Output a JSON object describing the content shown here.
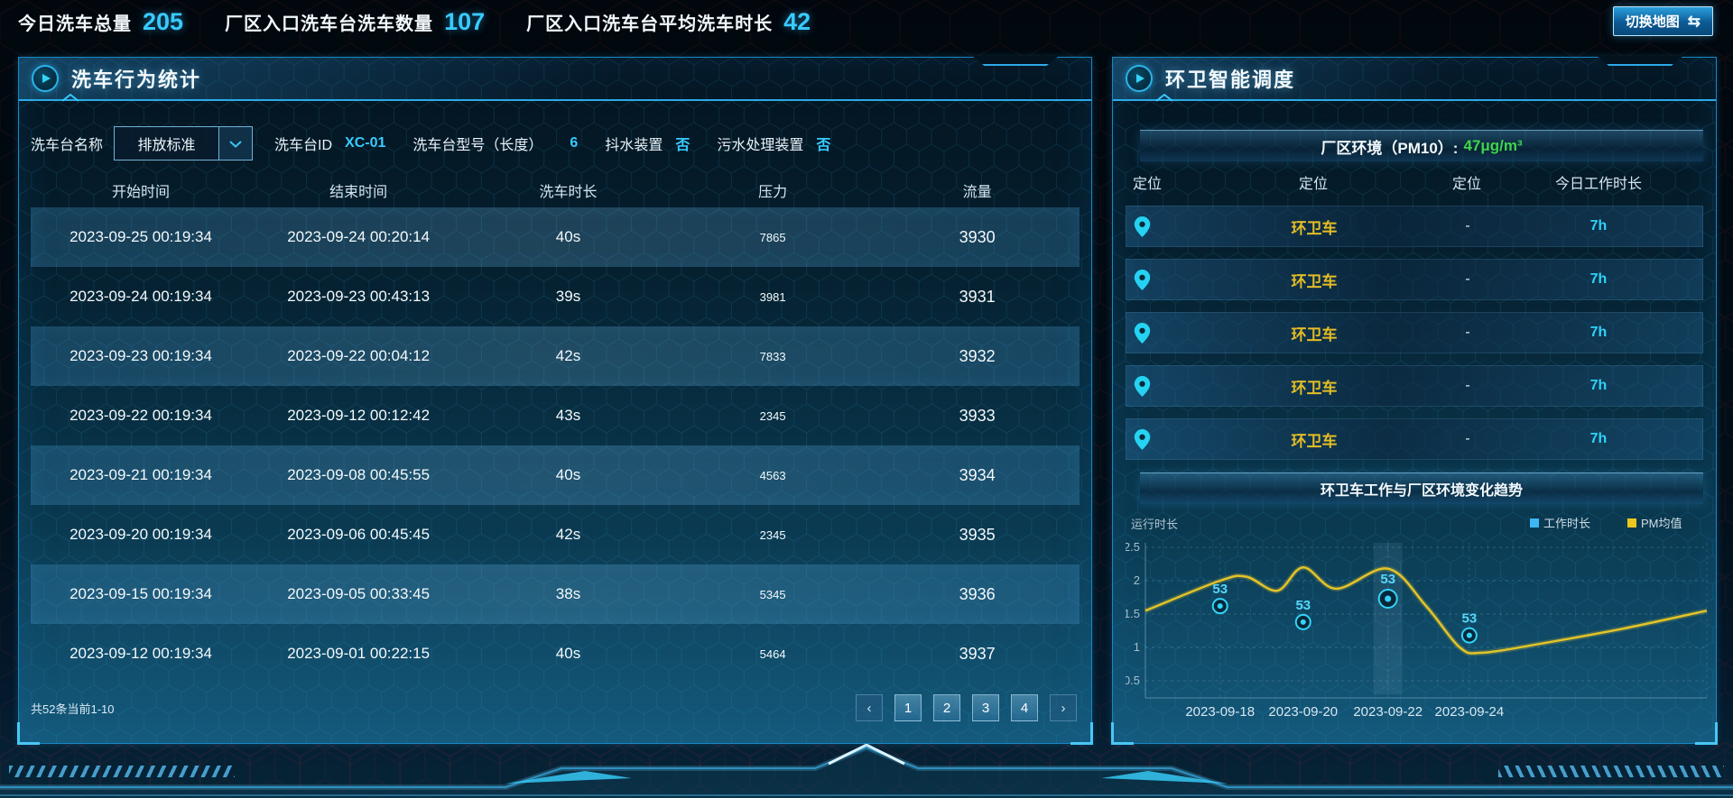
{
  "top_bar": {
    "stats": [
      {
        "label": "今日洗车总量",
        "value": "205"
      },
      {
        "label": "厂区入口洗车台洗车数量",
        "value": "107"
      },
      {
        "label": "厂区入口洗车台平均洗车时长",
        "value": "42"
      }
    ],
    "map_button": {
      "label": "切换地图",
      "icon": "⇆"
    }
  },
  "left_panel": {
    "title": "洗车行为统计",
    "filters": {
      "name_label": "洗车台名称",
      "name_value": "排放标准",
      "id_label": "洗车台ID",
      "id_value": "XC-01",
      "model_label": "洗车台型号（长度）",
      "model_value": "6",
      "shake_label": "抖水装置",
      "shake_value": "否",
      "sewage_label": "污水处理装置",
      "sewage_value": "否"
    },
    "table": {
      "headers": [
        "开始时间",
        "结束时间",
        "洗车时长",
        "压力",
        "流量"
      ],
      "rows": [
        [
          "2023-09-25 00:19:34",
          "2023-09-24 00:20:14",
          "40s",
          "7865",
          "3930"
        ],
        [
          "2023-09-24 00:19:34",
          "2023-09-23 00:43:13",
          "39s",
          "3981",
          "3931"
        ],
        [
          "2023-09-23 00:19:34",
          "2023-09-22 00:04:12",
          "42s",
          "7833",
          "3932"
        ],
        [
          "2023-09-22 00:19:34",
          "2023-09-12 00:12:42",
          "43s",
          "2345",
          "3933"
        ],
        [
          "2023-09-21 00:19:34",
          "2023-09-08 00:45:55",
          "40s",
          "4563",
          "3934"
        ],
        [
          "2023-09-20 00:19:34",
          "2023-09-06 00:45:45",
          "42s",
          "2345",
          "3935"
        ],
        [
          "2023-09-15 00:19:34",
          "2023-09-05 00:33:45",
          "38s",
          "5345",
          "3936"
        ],
        [
          "2023-09-12 00:19:34",
          "2023-09-01 00:22:15",
          "40s",
          "5464",
          "3937"
        ]
      ]
    },
    "footer": {
      "summary": "共52条当前1-10",
      "prev": "‹",
      "pages": [
        "1",
        "2",
        "3",
        "4"
      ],
      "next": "›"
    }
  },
  "right_panel": {
    "title": "环卫智能调度",
    "pm_bar": {
      "label": "厂区环境（PM10）:",
      "value": "47μg/m³"
    },
    "vehicle_table": {
      "headers": [
        "定位",
        "定位",
        "定位",
        "今日工作时长"
      ],
      "rows": [
        {
          "name": "环卫车",
          "dash": "-",
          "hours": "7h"
        },
        {
          "name": "环卫车",
          "dash": "-",
          "hours": "7h"
        },
        {
          "name": "环卫车",
          "dash": "-",
          "hours": "7h"
        },
        {
          "name": "环卫车",
          "dash": "-",
          "hours": "7h"
        },
        {
          "name": "环卫车",
          "dash": "-",
          "hours": "7h"
        }
      ]
    },
    "trend_title": "环卫车工作与厂区环境变化趋势"
  },
  "chart_data": {
    "type": "line",
    "title": "环卫车工作与厂区环境变化趋势",
    "ylabel": "运行时长",
    "ylim": [
      0,
      2.5
    ],
    "yticks": [
      0.5,
      1,
      1.5,
      2,
      2.5
    ],
    "grid": true,
    "legend_position": "top-right",
    "legend": [
      {
        "name": "工作时长",
        "color": "#3eb6f2"
      },
      {
        "name": "PM均值",
        "color": "#ecc81e"
      }
    ],
    "x_ticks": [
      "2023-09-18",
      "2023-09-20",
      "2023-09-22",
      "2023-09-24"
    ],
    "tick_fx": [
      0.133,
      0.281,
      0.432,
      0.577
    ],
    "series": [
      {
        "name": "工作时长",
        "style": "lollipop",
        "color": "#33d4f8",
        "points": [
          {
            "x": "2023-09-18",
            "y": 1.62,
            "label": "53"
          },
          {
            "x": "2023-09-20",
            "y": 1.38,
            "label": "53"
          },
          {
            "x": "2023-09-22",
            "y": 1.73,
            "label": "53",
            "emphasis": true
          },
          {
            "x": "2023-09-24",
            "y": 1.18,
            "label": "53"
          }
        ]
      },
      {
        "name": "PM均值",
        "style": "smooth-line",
        "color": "#e3c428",
        "curve": [
          {
            "fx": 0.0,
            "y": 1.55
          },
          {
            "fx": 0.133,
            "y": 2.0
          },
          {
            "fx": 0.18,
            "y": 2.06
          },
          {
            "fx": 0.235,
            "y": 1.85
          },
          {
            "fx": 0.281,
            "y": 2.2
          },
          {
            "fx": 0.34,
            "y": 1.88
          },
          {
            "fx": 0.432,
            "y": 2.18
          },
          {
            "fx": 0.5,
            "y": 1.62
          },
          {
            "fx": 0.56,
            "y": 1.0
          },
          {
            "fx": 0.6,
            "y": 0.92
          },
          {
            "fx": 0.7,
            "y": 1.05
          },
          {
            "fx": 0.85,
            "y": 1.28
          },
          {
            "fx": 1.0,
            "y": 1.55
          }
        ]
      }
    ]
  },
  "colors": {
    "accent_cyan": "#38cbff",
    "accent_yellow": "#e4bd25",
    "pm_green": "#3fd44b",
    "panel_border": "#1a86c2",
    "work_series": "#33d4f8",
    "pm_series": "#e3c428"
  }
}
